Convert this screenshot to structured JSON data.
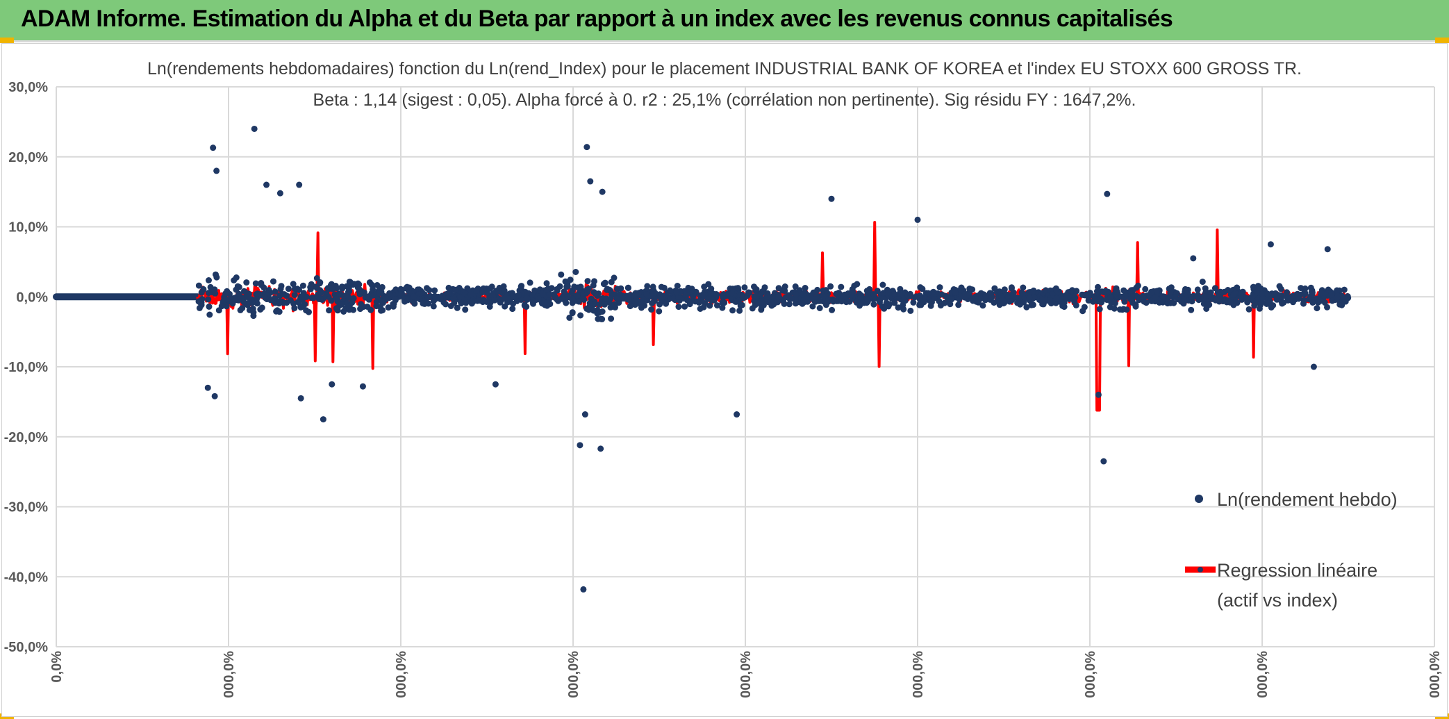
{
  "header": {
    "title": "ADAM Informe. Estimation du Alpha et du Beta par rapport à un index avec les revenus connus capitalisés"
  },
  "colors": {
    "header_bg": "#7ec97a",
    "points": "#1f3864",
    "regression": "#ff0000",
    "grid": "#d9d9d9",
    "accent": "#f0b400"
  },
  "chart_data": {
    "type": "scatter",
    "title": "Ln(rendements hebdomadaires) fonction du Ln(rend_Index) pour le placement INDUSTRIAL BANK OF KOREA et l'index EU STOXX 600 GROSS TR.",
    "subtitle": "Beta : 1,14 (sigest : 0,05). Alpha forcé à 0. r2 : 25,1% (corrélation non pertinente). Sig résidu FY : 1647,2%.",
    "xlabel": "",
    "ylabel": "",
    "ylim": [
      -0.5,
      0.3
    ],
    "y_ticks": [
      0.3,
      0.2,
      0.1,
      0.0,
      -0.1,
      -0.2,
      -0.3,
      -0.4,
      -0.5
    ],
    "y_tick_labels": [
      "30,0%",
      "20,0%",
      "10,0%",
      "0,0%",
      "-10,0%",
      "-20,0%",
      "-30,0%",
      "-40,0%",
      "-50,0%"
    ],
    "x_tick_labels": [
      "0,0%",
      "000,0%",
      "000,0%",
      "000,0%",
      "000,0%",
      "000,0%",
      "000,0%",
      "000,0%",
      "000,0%"
    ],
    "grid": true,
    "legend_position": "right",
    "series": [
      {
        "name": "Ln(rendement hebdo)",
        "kind": "points"
      },
      {
        "name": "Regression linéaire",
        "name_line2": "(actif vs index)",
        "kind": "line"
      }
    ],
    "flat_segment": {
      "x_end_index": 0.82,
      "value": 0.0
    },
    "data_start_index": 0.82,
    "data_end_index": 7.5,
    "outliers": [
      [
        0.91,
        0.213
      ],
      [
        0.93,
        0.18
      ],
      [
        1.15,
        0.24
      ],
      [
        1.22,
        0.16
      ],
      [
        1.41,
        0.16
      ],
      [
        1.3,
        0.148
      ],
      [
        0.88,
        -0.13
      ],
      [
        0.92,
        -0.142
      ],
      [
        1.55,
        -0.175
      ],
      [
        1.6,
        -0.125
      ],
      [
        1.78,
        -0.128
      ],
      [
        1.42,
        -0.145
      ],
      [
        3.08,
        0.214
      ],
      [
        3.1,
        0.165
      ],
      [
        3.17,
        0.15
      ],
      [
        3.04,
        -0.212
      ],
      [
        3.07,
        -0.168
      ],
      [
        3.16,
        -0.217
      ],
      [
        3.06,
        -0.418
      ],
      [
        4.5,
        0.14
      ],
      [
        5.0,
        0.11
      ],
      [
        6.08,
        -0.235
      ],
      [
        6.1,
        0.147
      ],
      [
        6.05,
        -0.14
      ],
      [
        2.55,
        -0.125
      ],
      [
        3.95,
        -0.168
      ],
      [
        7.05,
        0.075
      ],
      [
        7.3,
        -0.1
      ],
      [
        7.38,
        0.068
      ],
      [
        6.6,
        0.055
      ]
    ]
  }
}
